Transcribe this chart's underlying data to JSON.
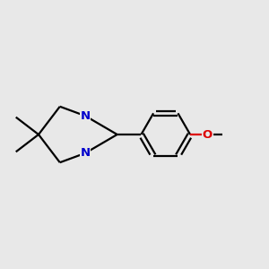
{
  "background_color": "#e8e8e8",
  "bond_color": "#000000",
  "nitrogen_color": "#0000cc",
  "oxygen_color": "#dd0000",
  "line_width": 1.6,
  "fig_size": [
    3.0,
    3.0
  ],
  "dpi": 100,
  "xlim": [
    0.0,
    1.0
  ],
  "ylim": [
    0.0,
    1.0
  ]
}
